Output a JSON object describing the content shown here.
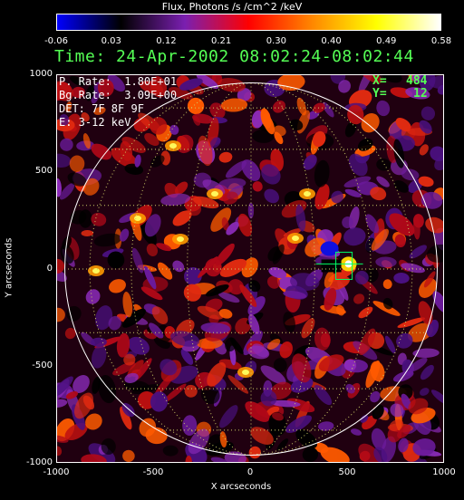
{
  "colorbar": {
    "title": "Flux, Photons /s /cm^2 /keV",
    "ticks": [
      "-0.06",
      "0.03",
      "0.12",
      "0.21",
      "0.30",
      "0.40",
      "0.49",
      "0.58"
    ],
    "colors": [
      "#0000ff",
      "#000000",
      "#7a1fb0",
      "#ff0000",
      "#ff8800",
      "#ffff00",
      "#ffffff"
    ]
  },
  "header": {
    "time": "Time: 24-Apr-2002 08:02:24-08:02:44"
  },
  "info": {
    "peak_rate": "P. Rate:  1.80E+01",
    "bg_rate": "Bg.Rate:  3.09E+00",
    "detectors": "DET: 7F 8F 9F",
    "energy": "E: 3-12 keV"
  },
  "cursor": {
    "x_label": "X=",
    "x_value": "484",
    "y_label": "Y=",
    "y_value": "12"
  },
  "axes": {
    "x_title": "X arcseconds",
    "y_title": "Y arcseconds",
    "x_ticks": [
      "-1000",
      "-500",
      "0",
      "500",
      "1000"
    ],
    "y_ticks": [
      "1000",
      "500",
      "0",
      "-500",
      "-1000"
    ],
    "x_range": [
      -1000,
      1000
    ],
    "y_range": [
      -1000,
      1000
    ]
  },
  "image": {
    "grid": true,
    "limb_color": "#ffffff",
    "grid_color": "#cccc66",
    "source_marker_color": "#00ff66"
  }
}
